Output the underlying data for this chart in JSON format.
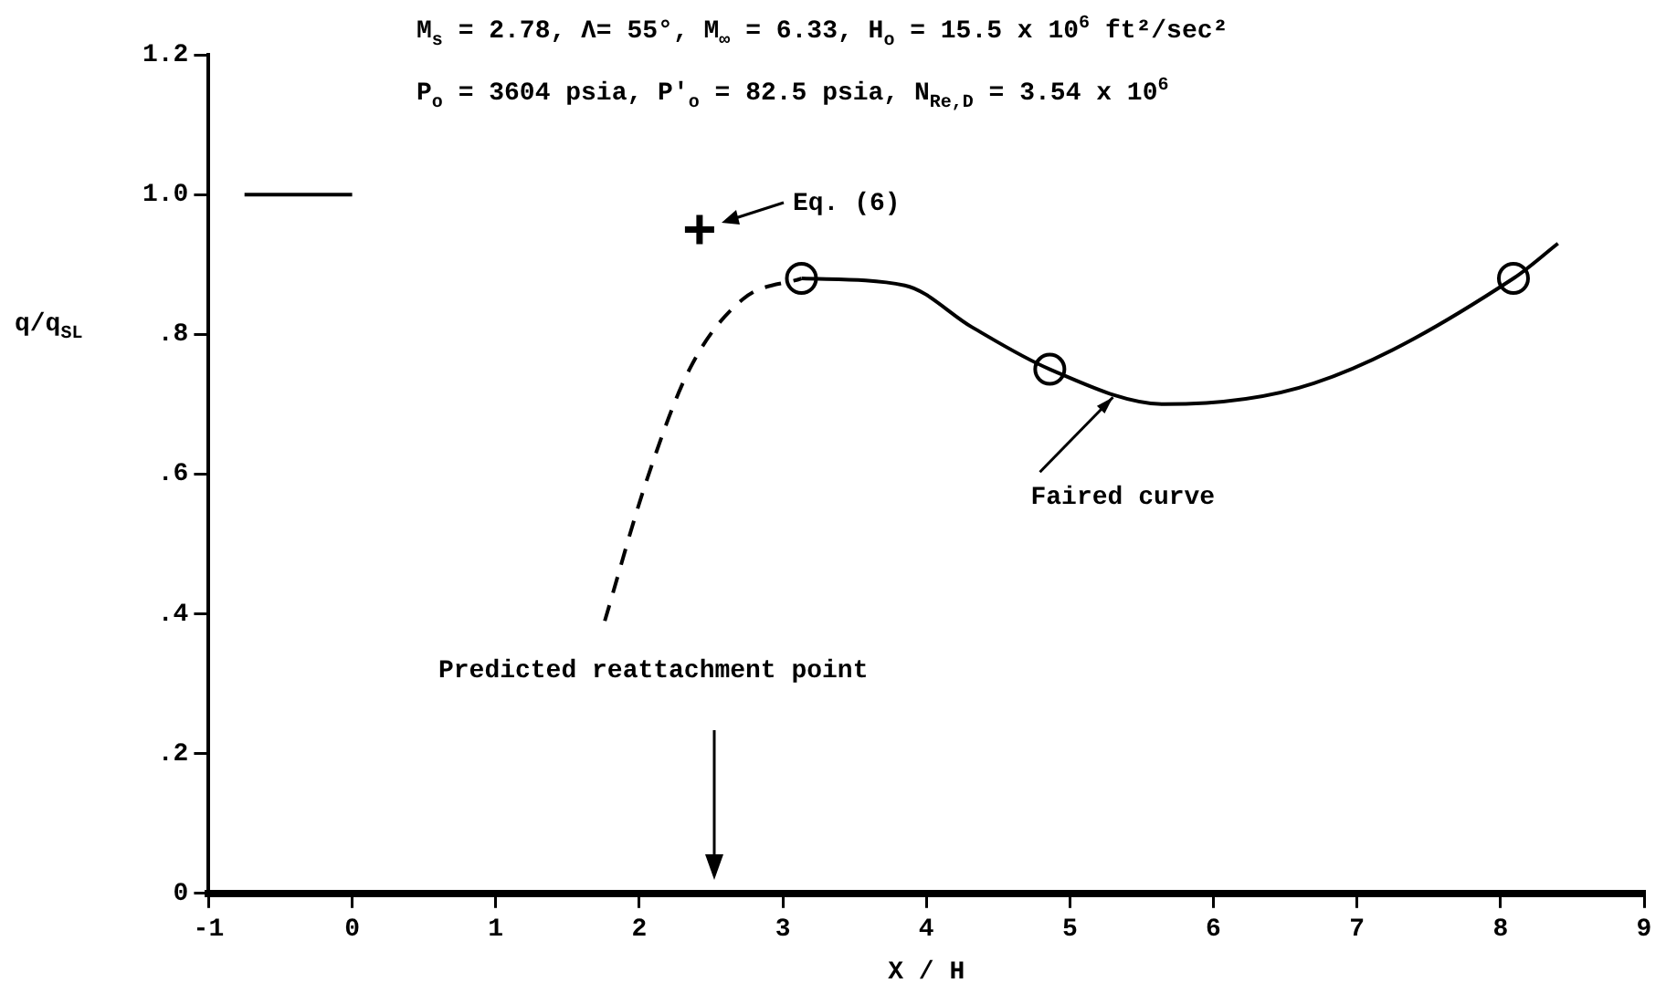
{
  "chart_data": {
    "type": "line",
    "title": "M$_{s}$ = 2.78, Λ= 55°, M$_{∞}$ = 6.33, H$_{o}$ = 15.5 x 10$^{6}$ ft²/sec²",
    "subtitle": "P$_{o}$ = 3604 psia, P′$_{o}$ = 82.5 psia, N$_{Re,D}$ = 3.54 x 10$^{6}$",
    "xlabel": "X / H",
    "ylabel": "q/q$_{SL}$",
    "xlim": [
      -1,
      9
    ],
    "xticks": [
      {
        "value": -1,
        "label": "-1"
      },
      {
        "value": 0,
        "label": "0"
      },
      1,
      2,
      3,
      4,
      5,
      6,
      7,
      8,
      9
    ],
    "ylim": [
      0,
      1.2
    ],
    "yticks": [
      0,
      {
        "value": 0.2,
        "label": ".2"
      },
      {
        "value": 0.4,
        "label": ".4"
      },
      {
        "value": 0.6,
        "label": ".6"
      },
      {
        "value": 0.8,
        "label": ".8"
      },
      {
        "value": 1,
        "label": "1.0"
      },
      {
        "value": 1.2,
        "label": "1.2"
      }
    ],
    "grid": false,
    "legend": false,
    "series": [
      {
        "type": "line",
        "color": "#000000",
        "line_style": "dashed",
        "marker": "none",
        "x": [
          1.76,
          2.05,
          2.35,
          2.72,
          3.13
        ],
        "values": [
          0.39,
          0.59,
          0.75,
          0.85,
          0.88
        ]
      },
      {
        "type": "line",
        "color": "#000000",
        "line_style": "solid",
        "marker": "none",
        "x": [
          3.13,
          3.85,
          4.32,
          4.86,
          5.66,
          6.7,
          8.09,
          8.4
        ],
        "values": [
          0.88,
          0.87,
          0.81,
          0.75,
          0.7,
          0.73,
          0.88,
          0.93
        ]
      },
      {
        "type": "scatter",
        "color": "#000000",
        "marker": "circle",
        "x": [
          3.13,
          4.86,
          8.09
        ],
        "values": [
          0.88,
          0.75,
          0.88
        ]
      },
      {
        "type": "scatter",
        "color": "#000000",
        "marker": "cross",
        "x": [
          2.42
        ],
        "values": [
          0.95
        ]
      },
      {
        "type": "line",
        "color": "#000000",
        "line_style": "solid",
        "marker": "none",
        "x": [
          -0.75,
          0
        ],
        "values": [
          1,
          1
        ]
      }
    ],
    "annotations": [
      "Eq. (6)",
      {
        "text": "Faired curve",
        "x": 5.3,
        "y": 0.71
      },
      "Predicted reattachment point"
    ]
  }
}
